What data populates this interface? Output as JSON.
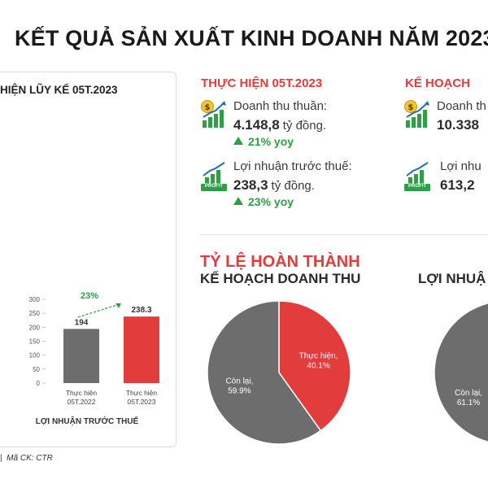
{
  "header": {
    "title": "KẾT QUẢ SẢN XUẤT KINH DOANH NĂM 2023"
  },
  "left_panel": {
    "title": "HIỆN LŨY KẾ 05T.2023",
    "growth_label": "23%",
    "chart_caption": "LỢI NHUẬN TRƯỚC THUẾ"
  },
  "actual": {
    "heading": "THỰC HIỆN 05T.2023",
    "revenue_label": "Doanh thu thuần:",
    "revenue_value": "4.148,8",
    "revenue_unit": "tỷ đồng.",
    "revenue_yoy": "21% yoy",
    "profit_label": "Lợi nhuận trước thuế:",
    "profit_value": "238,3",
    "profit_unit": "tỷ đồng.",
    "profit_yoy": "23% yoy",
    "profit_badge": "PROFIT"
  },
  "plan": {
    "heading": "KẾ HOẠCH",
    "revenue_label": "Doanh th",
    "revenue_value": "10.338",
    "profit_label": "Lợi nhu",
    "profit_value": "613,2",
    "profit_badge": "PROFIT"
  },
  "completion": {
    "heading": "TỶ LỆ HOÀN THÀNH",
    "revenue_heading": "KẾ HOẠCH DOANH THU",
    "profit_heading": "LỢI NHUẬ"
  },
  "footer": {
    "ticker": "Mã CK: CTR"
  },
  "colors": {
    "accent_red": "#e23c3c",
    "grey": "#6d6d6d",
    "green": "#2f9e45"
  },
  "chart_data": [
    {
      "type": "bar",
      "title": "LỢI NHUẬN TRƯỚC THUẾ",
      "categories": [
        "Thực hiện 05T.2022",
        "Thực hiện 05T.2023"
      ],
      "values": [
        194,
        238.3
      ],
      "value_labels": [
        "194",
        "238.3"
      ],
      "ylim": [
        0,
        300
      ],
      "yticks": [
        0,
        50,
        100,
        150,
        200,
        250,
        300
      ],
      "bar_colors": [
        "#6d6d6d",
        "#e23c3c"
      ],
      "annotation": "23%"
    },
    {
      "type": "pie",
      "title": "KẾ HOẠCH DOANH THU",
      "slices": [
        {
          "label": "Thực hiện,",
          "value_text": "40.1%",
          "value": 40.1,
          "color": "#e23c3c"
        },
        {
          "label": "Còn lại,",
          "value_text": "59.9%",
          "value": 59.9,
          "color": "#6d6d6d"
        }
      ]
    },
    {
      "type": "pie",
      "title": "LỢI NHUẬ",
      "slices": [
        {
          "label": "Còn lại,",
          "value_text": "61.1%",
          "value": 61.1,
          "color": "#6d6d6d"
        }
      ]
    }
  ]
}
